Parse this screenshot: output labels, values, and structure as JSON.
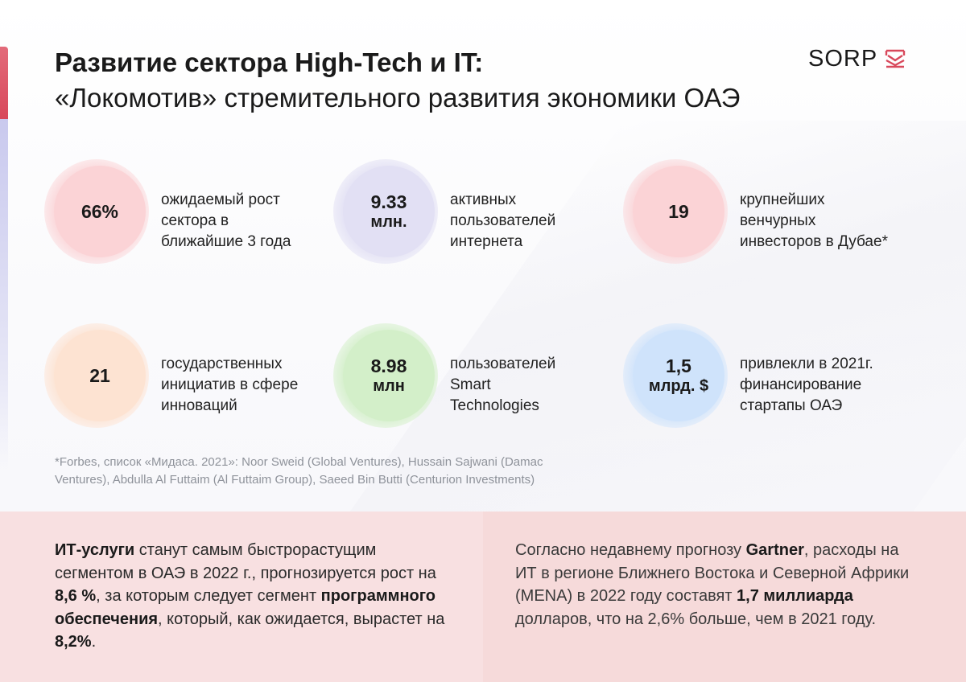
{
  "header": {
    "title_bold": "Развитие сектора High-Tech и IT:",
    "title_regular": "«Локомотив» стремительного развития экономики ОАЭ",
    "logo_text": "SORP",
    "logo_icon": "sorp-mark-icon"
  },
  "colors": {
    "accent_red": "#d8485b",
    "pink_disc": "#fbd3d6",
    "lavender_disc": "#e2e0f4",
    "peach_disc": "#fde3d2",
    "green_disc": "#d3efc9",
    "blue_disc": "#cfe3fb",
    "panel_left": "#f8e0e1",
    "panel_right": "#f6dada"
  },
  "stats": [
    {
      "value_line1": "66%",
      "value_line2": "",
      "label_lines": [
        "ожидаемый рост",
        "сектора в",
        "ближайшие 3 года"
      ]
    },
    {
      "value_line1": "9.33",
      "value_line2": "млн.",
      "label_lines": [
        "активных",
        "пользователей",
        "интернета"
      ]
    },
    {
      "value_line1": "19",
      "value_line2": "",
      "label_lines": [
        "крупнейших",
        "венчурных",
        "инвесторов в Дубае*"
      ]
    },
    {
      "value_line1": "21",
      "value_line2": "",
      "label_lines": [
        "государственных",
        "инициатив в сфере",
        "инноваций"
      ]
    },
    {
      "value_line1": "8.98",
      "value_line2": "млн",
      "label_lines": [
        "пользователей",
        "Smart",
        "Technologies"
      ]
    },
    {
      "value_line1": "1,5",
      "value_line2": "млрд. $",
      "label_lines": [
        "привлекли в 2021г.",
        "финансирование",
        "стартапы ОАЭ"
      ]
    }
  ],
  "footnote": {
    "line1": "*Forbes, список «Мидаса. 2021»: Noor Sweid (Global Ventures), Hussain Sajwani (Damac",
    "line2": "Ventures), Abdulla Al Futtaim (Al Futtaim Group), Saeed Bin Butti (Centurion Investments)"
  },
  "panel_left": {
    "b1": "ИТ-услуги",
    "t1": " станут самым быстрорастущим сегментом в ОАЭ в 2022 г., прогнозируется рост на ",
    "b2": "8,6 %",
    "t2": ", за которым следует сегмент ",
    "b3": "программного обеспечения",
    "t3": ", который, как ожидается, вырастет на ",
    "b4": "8,2%",
    "t4": "."
  },
  "panel_right": {
    "t1": "Согласно недавнему прогнозу ",
    "b1": "Gartner",
    "t2": ", расходы на ИТ в регионе Ближнего Востока и Северной Африки (MENA) в 2022 году составят ",
    "b2": "1,7 миллиарда",
    "t3": " долларов, что на 2,6% больше, чем в 2021 году."
  }
}
